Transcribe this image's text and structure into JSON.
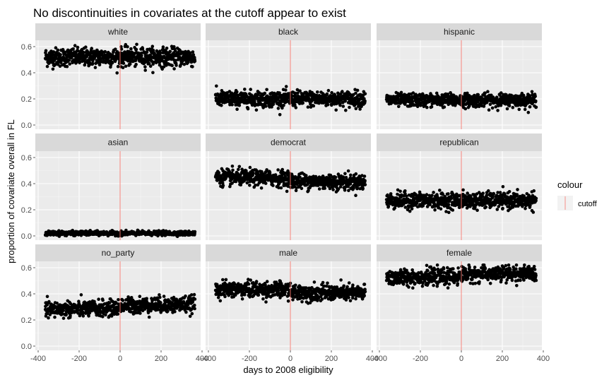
{
  "chart_data": {
    "type": "scatter",
    "title": "No discontinuities in covariates at the cutoff appear to exist",
    "xlabel": "days to 2008 eligibility",
    "ylabel": "proportion of covariate overall in FL",
    "xlim": [
      -400,
      400
    ],
    "ylim": [
      0,
      0.6
    ],
    "x_ticks": [
      -400,
      -200,
      0,
      200,
      400
    ],
    "x_tick_labels": [
      "-400",
      "-200",
      "0",
      "200",
      "400"
    ],
    "y_ticks": [
      0.0,
      0.2,
      0.4,
      0.6
    ],
    "y_tick_labels": [
      "0.0",
      "0.2",
      "0.4",
      "0.6"
    ],
    "x_range_data": [
      -365,
      365
    ],
    "cutoff_x": 0,
    "cutoff_color": "#F8766D",
    "point_color": "#000000",
    "panel_bg": "#EBEBEB",
    "strip_bg": "#D9D9D9",
    "legend": {
      "title": "colour",
      "entries": [
        "cutoff"
      ]
    },
    "facets": [
      {
        "name": "white",
        "pre_mean": 0.52,
        "post_mean": 0.52,
        "spread": 0.035,
        "trend": 0.0
      },
      {
        "name": "black",
        "pre_mean": 0.2,
        "post_mean": 0.2,
        "spread": 0.03,
        "trend": 0.0
      },
      {
        "name": "hispanic",
        "pre_mean": 0.19,
        "post_mean": 0.19,
        "spread": 0.025,
        "trend": 0.0
      },
      {
        "name": "asian",
        "pre_mean": 0.02,
        "post_mean": 0.02,
        "spread": 0.008,
        "trend": 0.0
      },
      {
        "name": "democrat",
        "pre_mean": 0.44,
        "post_mean": 0.42,
        "spread": 0.03,
        "trend": -0.02
      },
      {
        "name": "republican",
        "pre_mean": 0.27,
        "post_mean": 0.27,
        "spread": 0.03,
        "trend": 0.0
      },
      {
        "name": "no_party",
        "pre_mean": 0.29,
        "post_mean": 0.31,
        "spread": 0.03,
        "trend": 0.02
      },
      {
        "name": "male",
        "pre_mean": 0.43,
        "post_mean": 0.41,
        "spread": 0.03,
        "trend": -0.01
      },
      {
        "name": "female",
        "pre_mean": 0.53,
        "post_mean": 0.55,
        "spread": 0.03,
        "trend": 0.01
      }
    ]
  }
}
